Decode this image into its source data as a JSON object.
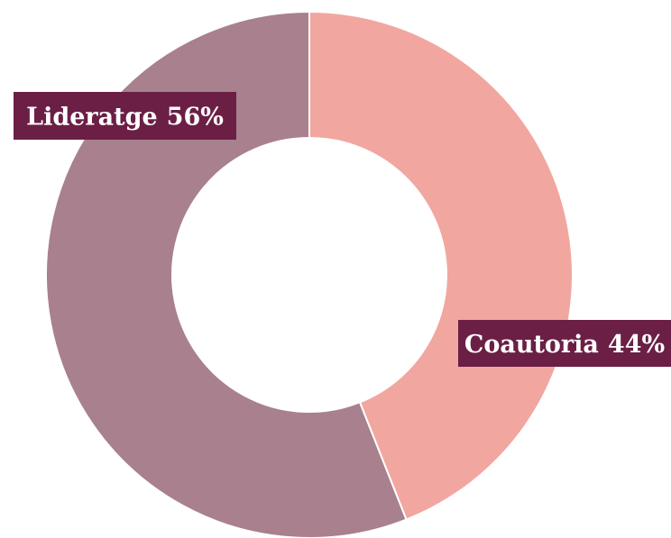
{
  "chart_data": {
    "type": "donut",
    "categories": [
      "Coautoria",
      "Lideratge"
    ],
    "values": [
      44,
      56
    ],
    "value_labels": [
      "44%",
      "56%"
    ],
    "colors": [
      "#f2a6a0",
      "#a8808e"
    ]
  }
}
